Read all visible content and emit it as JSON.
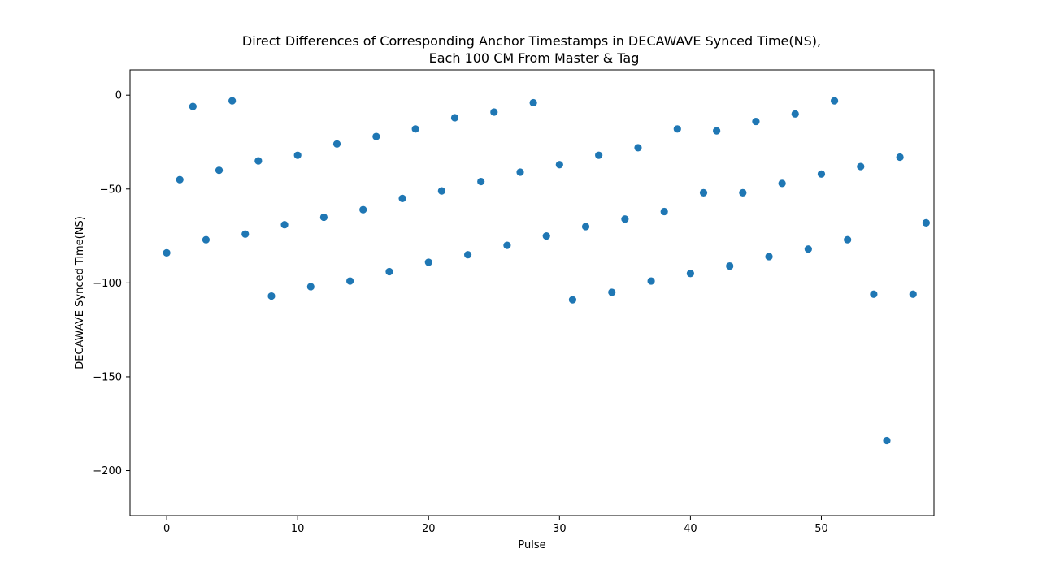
{
  "chart_data": {
    "type": "scatter",
    "title_lines": [
      "Direct Differences of Corresponding Anchor Timestamps in DECAWAVE Synced Time(NS),",
      "Each 100 CM From Master & Tag"
    ],
    "xlabel": "Pulse",
    "ylabel": "DECAWAVE Synced Time(NS)",
    "xlim": [
      -2.8,
      58.6
    ],
    "ylim": [
      -224,
      13.5
    ],
    "xticks": [
      0,
      10,
      20,
      30,
      40,
      50
    ],
    "yticks": [
      0,
      -50,
      -100,
      -150,
      -200
    ],
    "xtick_labels": [
      "0",
      "10",
      "20",
      "30",
      "40",
      "50"
    ],
    "ytick_labels": [
      "0",
      "−50",
      "−100",
      "−150",
      "−200"
    ],
    "grid": false,
    "marker_color": "#1f77b4",
    "series": [
      {
        "x": [
          0,
          1,
          2,
          3,
          4,
          5,
          6,
          7,
          8,
          9,
          10,
          11,
          12,
          13,
          14,
          15,
          16,
          17,
          18,
          19,
          20,
          21,
          22,
          23,
          24,
          25,
          26,
          27,
          28,
          29,
          30,
          31,
          32,
          33,
          34,
          35,
          36,
          37,
          38,
          39,
          40,
          41,
          42,
          43,
          44,
          45,
          46,
          47,
          48,
          49,
          50,
          51,
          52,
          53,
          54,
          55,
          56,
          57,
          58
        ],
        "y": [
          -84,
          -45,
          -6,
          -77,
          -40,
          -3,
          -74,
          -35,
          -107,
          -69,
          -32,
          -102,
          -65,
          -26,
          -99,
          -61,
          -22,
          -94,
          -55,
          -18,
          -89,
          -51,
          -12,
          -85,
          -46,
          -9,
          -80,
          -41,
          -4,
          -75,
          -37,
          -109,
          -70,
          -32,
          -105,
          -66,
          -28,
          -99,
          -62,
          -18,
          -95,
          -52,
          -19,
          -91,
          -52,
          -14,
          -86,
          -47,
          -10,
          -82,
          -42,
          -3,
          -77,
          -38,
          -106,
          -184,
          -33,
          -106,
          -68
        ]
      }
    ]
  }
}
